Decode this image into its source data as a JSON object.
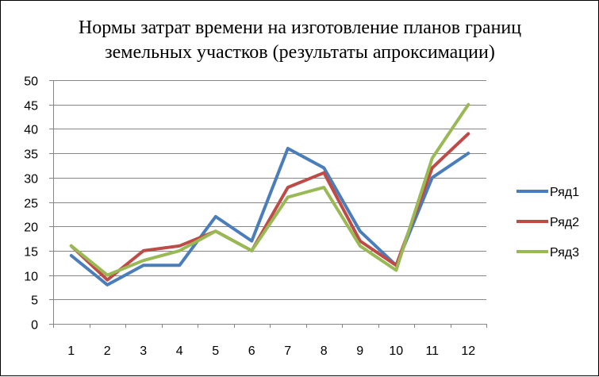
{
  "chart_data": {
    "type": "line",
    "title_lines": [
      "Нормы затрат времени на изготовление планов границ",
      "земельных участков (результаты апроксимации)"
    ],
    "xlabel": "",
    "ylabel": "",
    "categories": [
      "1",
      "2",
      "3",
      "4",
      "5",
      "6",
      "7",
      "8",
      "9",
      "10",
      "11",
      "12"
    ],
    "ylim": [
      0,
      50
    ],
    "yticks": [
      "0",
      "5",
      "10",
      "15",
      "20",
      "25",
      "30",
      "35",
      "40",
      "45",
      "50"
    ],
    "grid": true,
    "legend_position": "right",
    "series": [
      {
        "name": "Ряд1",
        "color": "#4a7ebb",
        "values": [
          14,
          8,
          12,
          12,
          22,
          17,
          36,
          32,
          19,
          12,
          30,
          35
        ]
      },
      {
        "name": "Ряд2",
        "color": "#be4b48",
        "values": [
          16,
          9,
          15,
          16,
          19,
          15,
          28,
          31,
          17,
          12,
          32,
          39
        ]
      },
      {
        "name": "Ряд3",
        "color": "#98b954",
        "values": [
          16,
          10,
          13,
          15,
          19,
          15,
          26,
          28,
          16,
          11,
          34,
          45
        ]
      }
    ]
  }
}
